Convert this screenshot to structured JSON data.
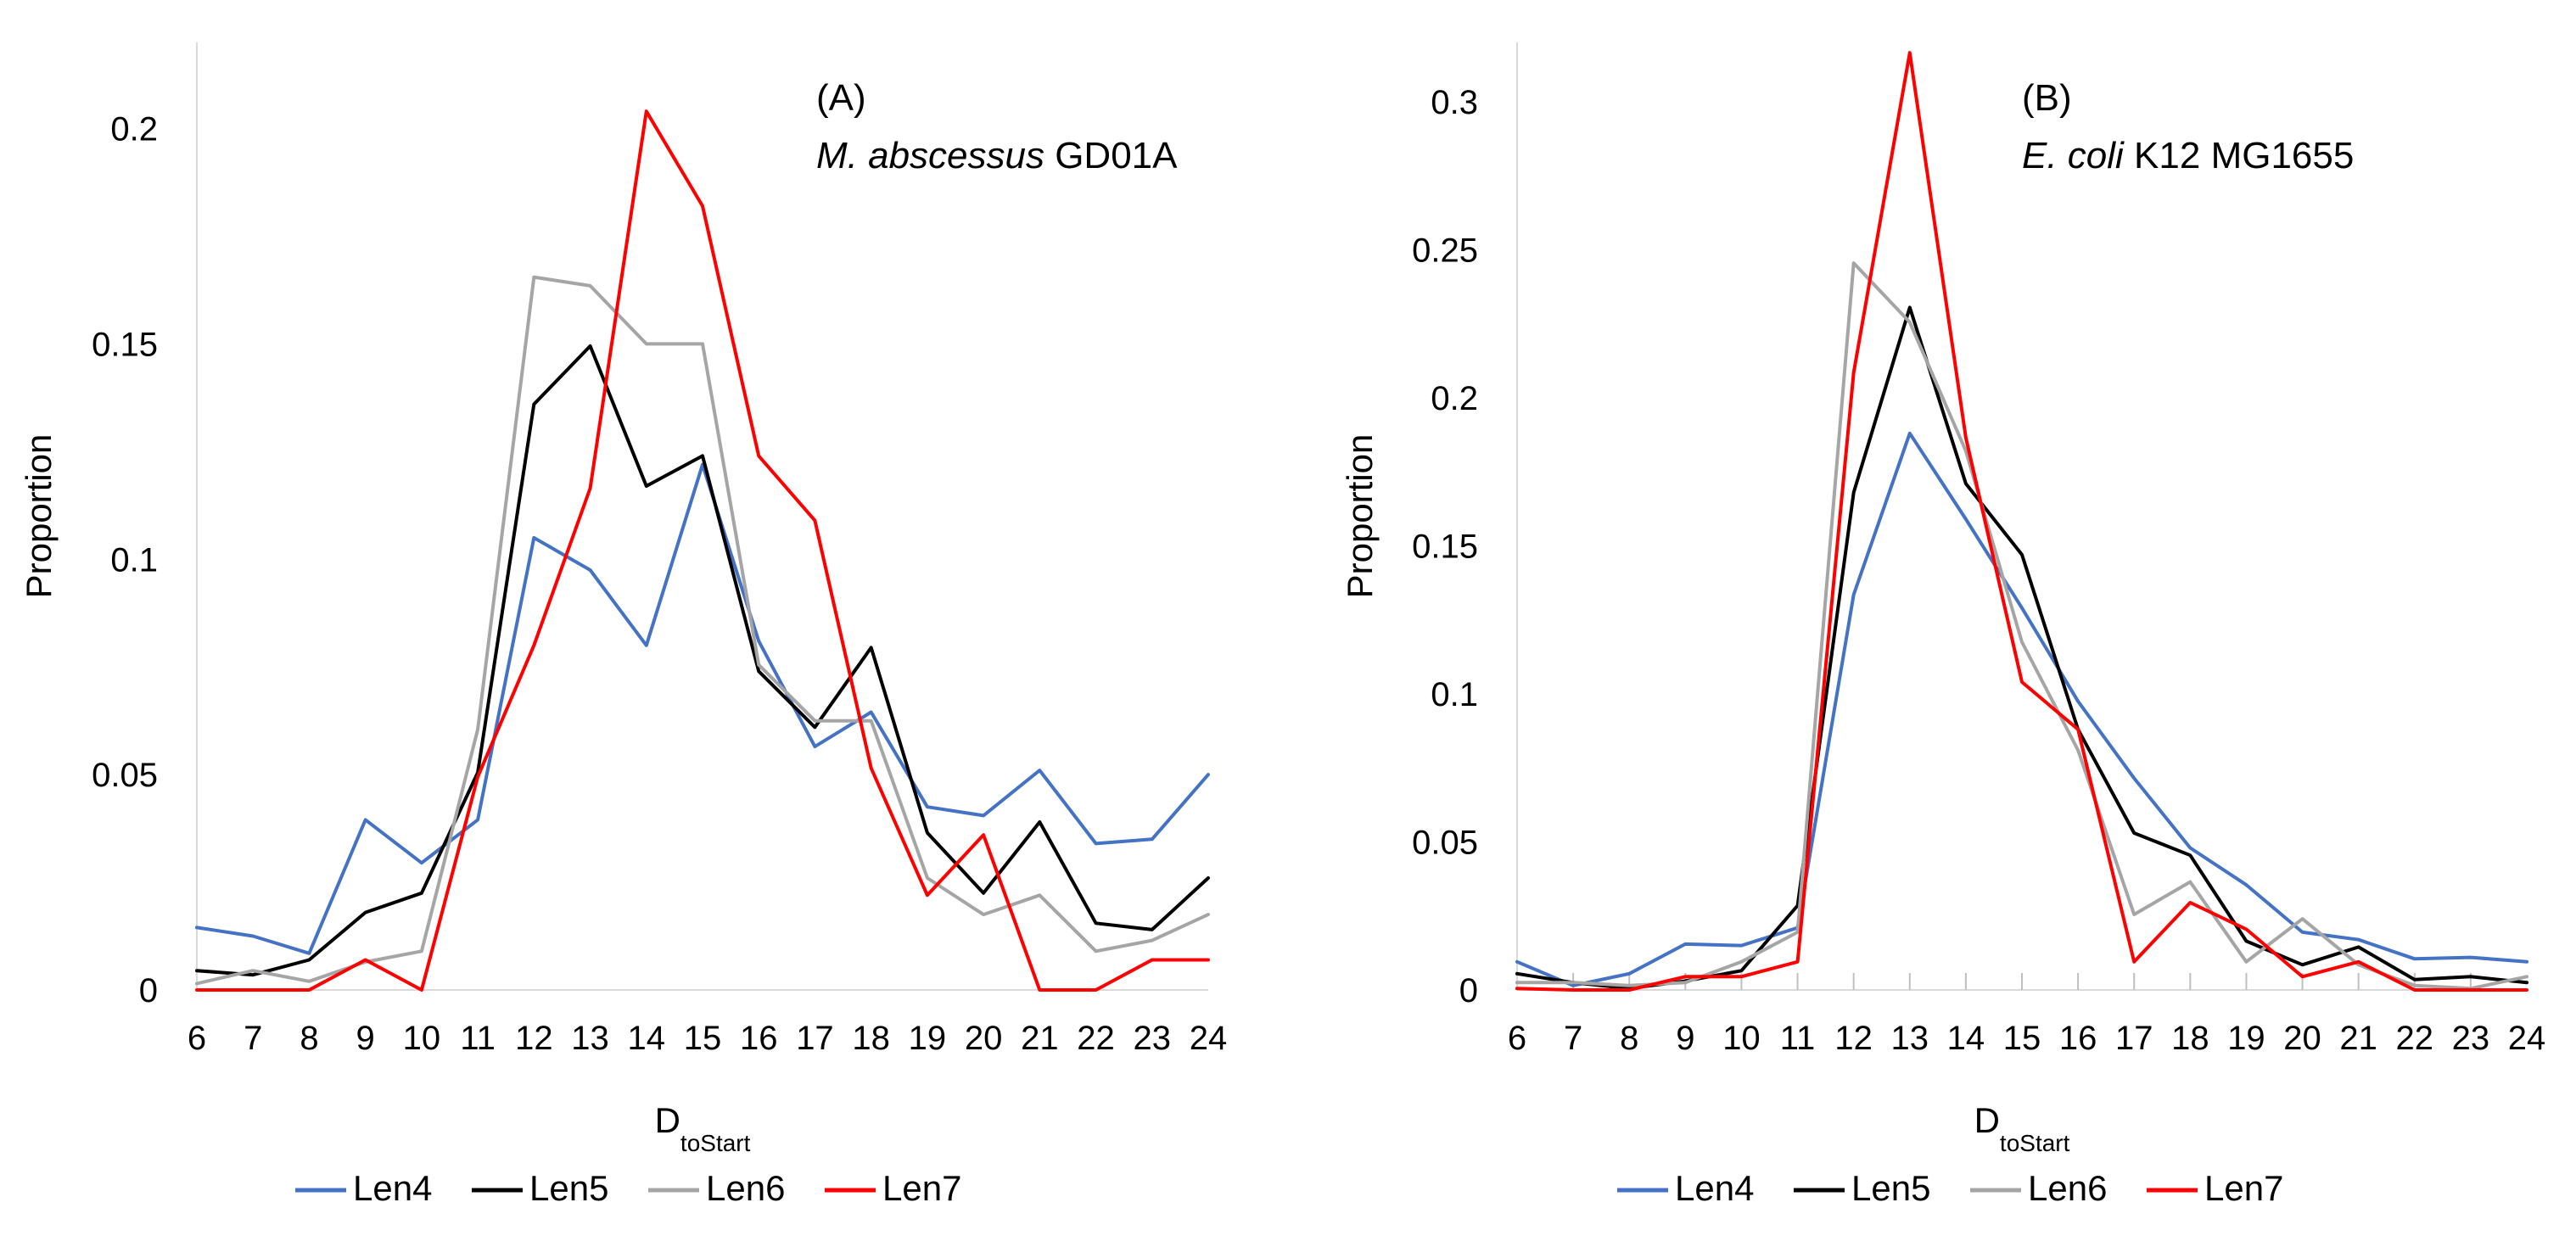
{
  "chart_data": [
    {
      "type": "line",
      "panel_label": "(A)",
      "title_italic": "M. abscessus",
      "title_rest": " GD01A",
      "xlabel_main": "D",
      "xlabel_sub": "toStart",
      "ylabel": "Proportion",
      "ylim": [
        0,
        0.22
      ],
      "yticks": [
        0,
        0.05,
        0.1,
        0.15,
        0.2
      ],
      "ytick_labels": [
        "0",
        "0.05",
        "0.1",
        "0.15",
        "0.2"
      ],
      "x": [
        "6",
        "7",
        "8",
        "9",
        "10",
        "11",
        "12",
        "13",
        "14",
        "15",
        "16",
        "17",
        "18",
        "19",
        "20",
        "21",
        "22",
        "23",
        "24"
      ],
      "series": [
        {
          "name": "Len4",
          "color": "#4472C4",
          "values": [
            0.0145,
            0.0125,
            0.0085,
            0.0395,
            0.0295,
            0.0395,
            0.105,
            0.0975,
            0.08,
            0.122,
            0.081,
            0.0565,
            0.0645,
            0.0425,
            0.0405,
            0.051,
            0.034,
            0.035,
            0.05
          ]
        },
        {
          "name": "Len5",
          "color": "#000000",
          "values": [
            0.0045,
            0.0035,
            0.007,
            0.018,
            0.0225,
            0.0505,
            0.136,
            0.1495,
            0.117,
            0.124,
            0.074,
            0.061,
            0.0795,
            0.0365,
            0.0225,
            0.039,
            0.0155,
            0.014,
            0.026
          ]
        },
        {
          "name": "Len6",
          "color": "#A5A5A5",
          "values": [
            0.0015,
            0.0045,
            0.002,
            0.0065,
            0.009,
            0.0605,
            0.1655,
            0.1635,
            0.15,
            0.15,
            0.0755,
            0.0625,
            0.0625,
            0.026,
            0.0175,
            0.022,
            0.009,
            0.0115,
            0.0175
          ]
        },
        {
          "name": "Len7",
          "color": "#FF0000",
          "values": [
            0.0,
            0.0,
            0.0,
            0.007,
            0.0,
            0.0495,
            0.08,
            0.1165,
            0.204,
            0.182,
            0.124,
            0.109,
            0.0515,
            0.022,
            0.036,
            0.0,
            0.0,
            0.007,
            0.007
          ]
        }
      ],
      "legend_position": "bottom"
    },
    {
      "type": "line",
      "panel_label": "(B)",
      "title_italic": "E. coli",
      "title_rest": " K12 MG1655",
      "xlabel_main": "D",
      "xlabel_sub": "toStart",
      "ylabel": "Proportion",
      "ylim": [
        0,
        0.32
      ],
      "yticks": [
        0,
        0.05,
        0.1,
        0.15,
        0.2,
        0.25,
        0.3
      ],
      "ytick_labels": [
        "0",
        "0.05",
        "0.1",
        "0.15",
        "0.2",
        "0.25",
        "0.3"
      ],
      "x": [
        "6",
        "7",
        "8",
        "9",
        "10",
        "11",
        "12",
        "13",
        "14",
        "15",
        "16",
        "17",
        "18",
        "19",
        "20",
        "21",
        "22",
        "23",
        "24"
      ],
      "series": [
        {
          "name": "Len4",
          "color": "#4472C4",
          "values": [
            0.0095,
            0.0015,
            0.0055,
            0.0155,
            0.015,
            0.021,
            0.1335,
            0.188,
            0.159,
            0.129,
            0.0975,
            0.0715,
            0.048,
            0.0355,
            0.0195,
            0.017,
            0.0105,
            0.011,
            0.0095
          ]
        },
        {
          "name": "Len5",
          "color": "#000000",
          "values": [
            0.0055,
            0.0025,
            0.0005,
            0.003,
            0.0065,
            0.0285,
            0.168,
            0.2305,
            0.171,
            0.147,
            0.088,
            0.053,
            0.0455,
            0.0165,
            0.0085,
            0.0145,
            0.0035,
            0.0045,
            0.0025
          ]
        },
        {
          "name": "Len6",
          "color": "#A5A5A5",
          "values": [
            0.0025,
            0.0025,
            0.0015,
            0.0025,
            0.0095,
            0.0195,
            0.2455,
            0.2255,
            0.182,
            0.1175,
            0.081,
            0.0255,
            0.0365,
            0.0095,
            0.024,
            0.0085,
            0.0015,
            0.0005,
            0.0045
          ]
        },
        {
          "name": "Len7",
          "color": "#FF0000",
          "values": [
            0.0005,
            0.0,
            0.0,
            0.0045,
            0.0045,
            0.0095,
            0.2085,
            0.3165,
            0.1865,
            0.104,
            0.088,
            0.0095,
            0.0295,
            0.0205,
            0.0045,
            0.0095,
            0.0,
            0.0,
            0.0
          ]
        }
      ],
      "legend_position": "bottom"
    }
  ]
}
